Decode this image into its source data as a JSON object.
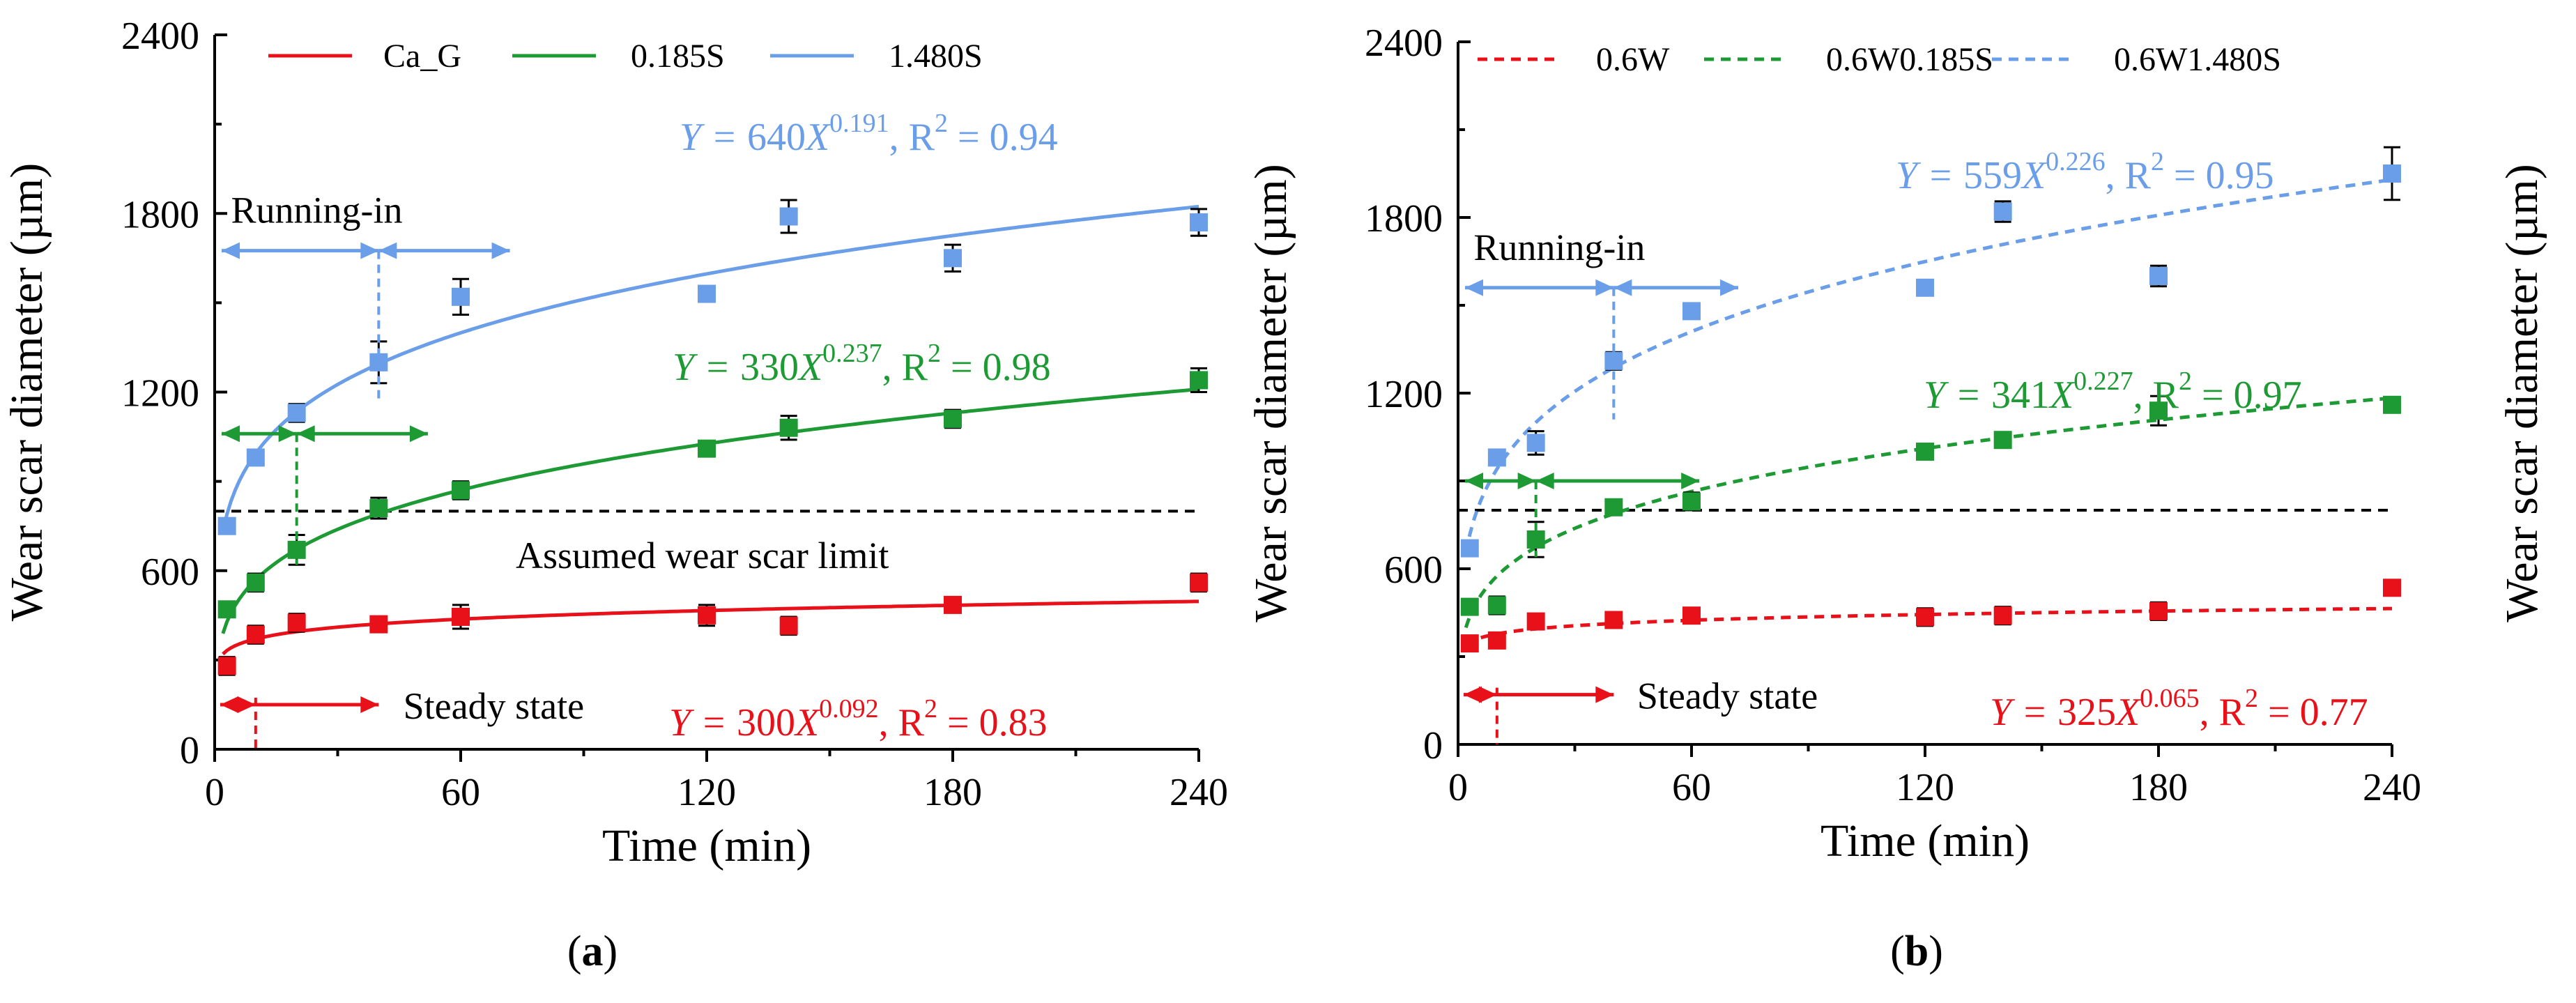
{
  "chart_data": [
    {
      "type": "scatter",
      "panel": "(a)",
      "panel_label_text": "a",
      "xlabel": "Time (min)",
      "ylabel": "Wear scar diameter (µm)",
      "xlim": [
        0,
        240
      ],
      "ylim": [
        0,
        2400
      ],
      "x_ticks": [
        0,
        60,
        120,
        180,
        240
      ],
      "y_ticks": [
        0,
        600,
        1200,
        1800,
        2400
      ],
      "line_style": "solid",
      "series": [
        {
          "name": "Ca_G",
          "color": "#e8111a",
          "x": [
            3,
            10,
            20,
            40,
            60,
            120,
            140,
            180,
            240
          ],
          "y": [
            280,
            385,
            425,
            420,
            445,
            450,
            415,
            485,
            560
          ],
          "err": [
            30,
            30,
            30,
            25,
            40,
            35,
            30,
            25,
            30
          ],
          "fit": {
            "a": 300,
            "b": 0.092
          },
          "r2": "0.83"
        },
        {
          "name": "0.185S",
          "color": "#1e9a35",
          "x": [
            3,
            10,
            20,
            40,
            60,
            120,
            140,
            180,
            240
          ],
          "y": [
            470,
            560,
            670,
            810,
            870,
            1010,
            1080,
            1110,
            1240
          ],
          "err": [
            20,
            30,
            50,
            35,
            30,
            25,
            40,
            30,
            40
          ],
          "fit": {
            "a": 330,
            "b": 0.237
          },
          "r2": "0.98"
        },
        {
          "name": "1.480S",
          "color": "#6a9ee8",
          "x": [
            3,
            10,
            20,
            40,
            60,
            120,
            140,
            180,
            240
          ],
          "y": [
            750,
            980,
            1130,
            1300,
            1520,
            1530,
            1790,
            1650,
            1770
          ],
          "err": [
            20,
            20,
            30,
            70,
            60,
            25,
            55,
            45,
            45
          ],
          "fit": {
            "a": 640,
            "b": 0.191
          },
          "r2": "0.94"
        }
      ],
      "legend": [
        "Ca_G",
        "0.185S",
        "1.480S"
      ],
      "limit_line": {
        "y": 800,
        "label": "Assumed wear scar limit"
      },
      "running_in_label": "Running-in",
      "steady_state_label": "Steady state"
    },
    {
      "type": "scatter",
      "panel": "(b)",
      "panel_label_text": "b",
      "xlabel": "Time (min)",
      "ylabel": "Wear scar diameter (µm)",
      "ylabel_right": "Wear scar diameter (µm)",
      "xlim": [
        0,
        240
      ],
      "ylim": [
        0,
        2400
      ],
      "x_ticks": [
        0,
        60,
        120,
        180,
        240
      ],
      "y_ticks": [
        0,
        600,
        1200,
        1800,
        2400
      ],
      "line_style": "dashed",
      "series": [
        {
          "name": "0.6W",
          "color": "#e8111a",
          "x": [
            3,
            10,
            20,
            40,
            60,
            120,
            140,
            180,
            240
          ],
          "y": [
            345,
            355,
            420,
            425,
            440,
            435,
            440,
            455,
            535
          ],
          "err": [
            20,
            25,
            20,
            20,
            20,
            30,
            30,
            30,
            20
          ],
          "fit": {
            "a": 325,
            "b": 0.065
          },
          "r2": "0.77"
        },
        {
          "name": "0.6W0.185S",
          "color": "#1e9a35",
          "x": [
            3,
            10,
            20,
            40,
            60,
            120,
            140,
            180,
            240
          ],
          "y": [
            470,
            475,
            700,
            810,
            830,
            1000,
            1040,
            1140,
            1160
          ],
          "err": [
            25,
            30,
            60,
            20,
            30,
            25,
            15,
            50,
            20
          ],
          "fit": {
            "a": 341,
            "b": 0.227
          },
          "r2": "0.97"
        },
        {
          "name": "0.6W1.480S",
          "color": "#6a9ee8",
          "x": [
            3,
            10,
            20,
            40,
            60,
            120,
            140,
            180,
            240
          ],
          "y": [
            670,
            980,
            1030,
            1310,
            1480,
            1560,
            1820,
            1600,
            1950
          ],
          "err": [
            20,
            15,
            40,
            30,
            25,
            25,
            35,
            35,
            90
          ],
          "fit": {
            "a": 559,
            "b": 0.226
          },
          "r2": "0.95"
        }
      ],
      "legend": [
        "0.6W",
        "0.6W0.185S",
        "0.6W1.480S"
      ],
      "limit_line": {
        "y": 800
      },
      "running_in_label": "Running-in",
      "steady_state_label": "Steady state"
    }
  ]
}
